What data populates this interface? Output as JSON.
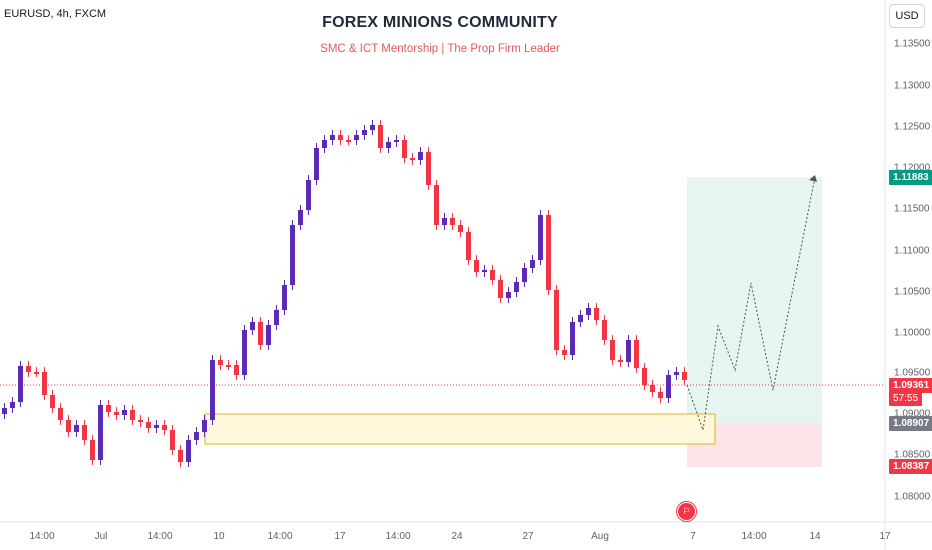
{
  "header": {
    "symbol": "EURUSD, 4h, FXCM",
    "title": "FOREX MINIONS COMMUNITY",
    "subtitle": "SMC & ICT Mentorship | The Prop Firm Leader",
    "currency_button": "USD"
  },
  "price_axis": {
    "ticks": [
      "1.13500",
      "1.13000",
      "1.12500",
      "1.12000",
      "1.11500",
      "1.11000",
      "1.10500",
      "1.10000",
      "1.09500",
      "1.09000",
      "1.08500",
      "1.08000"
    ]
  },
  "time_axis": {
    "ticks": [
      "14:00",
      "Jul",
      "14:00",
      "10",
      "14:00",
      "17",
      "14:00",
      "24",
      "27",
      "Aug",
      "7",
      "14:00",
      "14",
      "17"
    ]
  },
  "price_tags": {
    "target": "1.11883",
    "current": "1.09361",
    "countdown": "57:55",
    "entry": "1.08907",
    "stop": "1.08387"
  },
  "colors": {
    "bull": "#5b2bb8",
    "bear": "#f23645",
    "target_zone": "#e6f5ef",
    "stop_zone": "#fde4e8",
    "order_block_fill": "#fff8dc",
    "order_block_border": "#e0b020",
    "target_tag": "#089981",
    "current_tag": "#f23645",
    "entry_tag": "#787b86"
  },
  "event_icon": "calendar-event-flag-icon"
}
